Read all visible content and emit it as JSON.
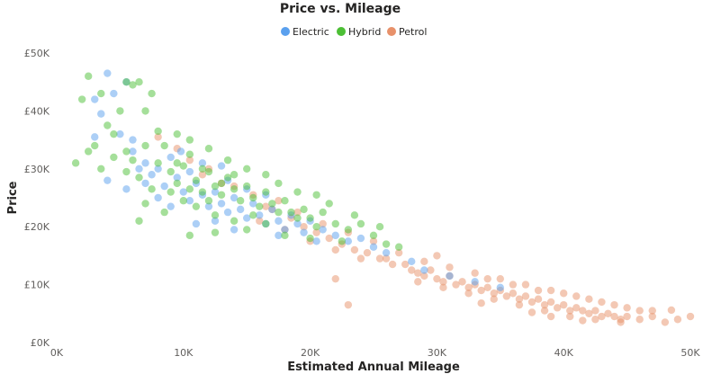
{
  "chart_data": {
    "type": "scatter",
    "title": "Price vs. Mileage",
    "xlabel": "Estimated Annual Mileage",
    "ylabel": "Price",
    "xlim": [
      0,
      50000
    ],
    "ylim": [
      0,
      50000
    ],
    "x_ticks": [
      {
        "value": 0,
        "label": "0K"
      },
      {
        "value": 10000,
        "label": "10K"
      },
      {
        "value": 20000,
        "label": "20K"
      },
      {
        "value": 30000,
        "label": "30K"
      },
      {
        "value": 40000,
        "label": "40K"
      },
      {
        "value": 50000,
        "label": "50K"
      }
    ],
    "y_ticks": [
      {
        "value": 0,
        "label": "£0K"
      },
      {
        "value": 10000,
        "label": "£10K"
      },
      {
        "value": 20000,
        "label": "£20K"
      },
      {
        "value": 30000,
        "label": "£30K"
      },
      {
        "value": 40000,
        "label": "£40K"
      },
      {
        "value": 50000,
        "label": "£50K"
      }
    ],
    "grid": false,
    "legend_position": "top-center",
    "series": [
      {
        "name": "Electric",
        "color": "#5aa0ee",
        "points": [
          [
            4000,
            46500
          ],
          [
            5500,
            45000
          ],
          [
            3000,
            35500
          ],
          [
            3500,
            39500
          ],
          [
            4500,
            43000
          ],
          [
            5000,
            36000
          ],
          [
            6000,
            33000
          ],
          [
            7000,
            31000
          ],
          [
            8000,
            30000
          ],
          [
            9000,
            32000
          ],
          [
            7500,
            29000
          ],
          [
            8500,
            27000
          ],
          [
            9500,
            28500
          ],
          [
            10000,
            26000
          ],
          [
            10500,
            24500
          ],
          [
            11000,
            27500
          ],
          [
            11500,
            25500
          ],
          [
            12000,
            23500
          ],
          [
            12500,
            26000
          ],
          [
            13000,
            24000
          ],
          [
            13500,
            22500
          ],
          [
            14000,
            25000
          ],
          [
            14500,
            23000
          ],
          [
            15000,
            21500
          ],
          [
            15500,
            24000
          ],
          [
            16000,
            22000
          ],
          [
            16500,
            20500
          ],
          [
            17000,
            23000
          ],
          [
            17500,
            21000
          ],
          [
            18000,
            19500
          ],
          [
            18500,
            22000
          ],
          [
            19000,
            20500
          ],
          [
            19500,
            19000
          ],
          [
            20000,
            21000
          ],
          [
            21000,
            19500
          ],
          [
            22000,
            18500
          ],
          [
            23000,
            17500
          ],
          [
            24000,
            18000
          ],
          [
            25000,
            16500
          ],
          [
            26000,
            15500
          ],
          [
            28000,
            14000
          ],
          [
            29000,
            12500
          ],
          [
            31000,
            11500
          ],
          [
            33000,
            10500
          ],
          [
            35000,
            9500
          ],
          [
            10500,
            29500
          ],
          [
            9800,
            33000
          ],
          [
            11500,
            31000
          ],
          [
            13500,
            28000
          ],
          [
            15000,
            26500
          ],
          [
            12500,
            21000
          ],
          [
            16500,
            25500
          ],
          [
            8000,
            25000
          ],
          [
            7000,
            27500
          ],
          [
            6500,
            30000
          ],
          [
            5500,
            26500
          ],
          [
            4000,
            28000
          ],
          [
            6000,
            35000
          ],
          [
            3000,
            42000
          ],
          [
            9000,
            23500
          ],
          [
            11000,
            20500
          ],
          [
            14000,
            19500
          ],
          [
            17500,
            18500
          ],
          [
            20500,
            17500
          ],
          [
            13000,
            30500
          ]
        ]
      },
      {
        "name": "Hybrid",
        "color": "#4cbf35",
        "points": [
          [
            2500,
            46000
          ],
          [
            3500,
            43000
          ],
          [
            2000,
            42000
          ],
          [
            5500,
            45000
          ],
          [
            6000,
            44500
          ],
          [
            6500,
            45000
          ],
          [
            7500,
            43000
          ],
          [
            7000,
            40000
          ],
          [
            5000,
            40000
          ],
          [
            4000,
            37500
          ],
          [
            3000,
            34000
          ],
          [
            2500,
            33000
          ],
          [
            1500,
            31000
          ],
          [
            4500,
            32000
          ],
          [
            5500,
            29500
          ],
          [
            6500,
            28500
          ],
          [
            7500,
            26500
          ],
          [
            8000,
            31000
          ],
          [
            8500,
            34000
          ],
          [
            9000,
            29500
          ],
          [
            9500,
            27500
          ],
          [
            10000,
            30500
          ],
          [
            10500,
            32500
          ],
          [
            11000,
            28000
          ],
          [
            11500,
            26000
          ],
          [
            12000,
            29500
          ],
          [
            12500,
            27000
          ],
          [
            13000,
            25500
          ],
          [
            13500,
            28500
          ],
          [
            14000,
            26500
          ],
          [
            14500,
            24500
          ],
          [
            15000,
            27000
          ],
          [
            15500,
            25000
          ],
          [
            16000,
            23500
          ],
          [
            16500,
            26000
          ],
          [
            17000,
            24000
          ],
          [
            17500,
            22500
          ],
          [
            18000,
            24500
          ],
          [
            18500,
            22500
          ],
          [
            19000,
            21500
          ],
          [
            19500,
            23000
          ],
          [
            20000,
            21500
          ],
          [
            20500,
            20000
          ],
          [
            21000,
            22500
          ],
          [
            22000,
            20500
          ],
          [
            23000,
            19500
          ],
          [
            24000,
            20500
          ],
          [
            25000,
            18500
          ],
          [
            26000,
            17000
          ],
          [
            27000,
            16500
          ],
          [
            8000,
            36500
          ],
          [
            9500,
            36000
          ],
          [
            10500,
            35000
          ],
          [
            12000,
            33500
          ],
          [
            13500,
            31500
          ],
          [
            11000,
            23500
          ],
          [
            12500,
            22000
          ],
          [
            14000,
            21000
          ],
          [
            15500,
            22000
          ],
          [
            16500,
            20500
          ],
          [
            10000,
            24500
          ],
          [
            9000,
            26000
          ],
          [
            7000,
            24000
          ],
          [
            8500,
            22500
          ],
          [
            6500,
            21000
          ],
          [
            10500,
            18500
          ],
          [
            12500,
            19000
          ],
          [
            15000,
            19500
          ],
          [
            18000,
            18500
          ],
          [
            20000,
            18000
          ],
          [
            22500,
            17500
          ],
          [
            4500,
            36000
          ],
          [
            7000,
            34000
          ],
          [
            3500,
            30000
          ],
          [
            5500,
            33000
          ],
          [
            6000,
            31500
          ],
          [
            9500,
            31000
          ],
          [
            11500,
            30000
          ],
          [
            13000,
            27500
          ],
          [
            15000,
            30000
          ],
          [
            16500,
            29000
          ],
          [
            17500,
            27500
          ],
          [
            19000,
            26000
          ],
          [
            20500,
            25500
          ],
          [
            21500,
            24000
          ],
          [
            23500,
            22000
          ],
          [
            25500,
            20000
          ],
          [
            14000,
            29000
          ],
          [
            12000,
            24500
          ],
          [
            10500,
            26500
          ]
        ]
      },
      {
        "name": "Petrol",
        "color": "#e8916a",
        "points": [
          [
            8000,
            35500
          ],
          [
            9500,
            33500
          ],
          [
            10500,
            31500
          ],
          [
            12000,
            30000
          ],
          [
            14000,
            27000
          ],
          [
            15500,
            25500
          ],
          [
            17000,
            23000
          ],
          [
            18500,
            21500
          ],
          [
            19500,
            20000
          ],
          [
            20500,
            19000
          ],
          [
            21500,
            18000
          ],
          [
            22500,
            17000
          ],
          [
            23500,
            16000
          ],
          [
            24500,
            15500
          ],
          [
            25500,
            14500
          ],
          [
            26500,
            13500
          ],
          [
            27500,
            13500
          ],
          [
            28000,
            12500
          ],
          [
            28500,
            12000
          ],
          [
            29000,
            11500
          ],
          [
            29500,
            12500
          ],
          [
            30000,
            11000
          ],
          [
            30500,
            10500
          ],
          [
            31000,
            11500
          ],
          [
            31500,
            10000
          ],
          [
            32000,
            10500
          ],
          [
            32500,
            9500
          ],
          [
            33000,
            10000
          ],
          [
            33500,
            9000
          ],
          [
            34000,
            9500
          ],
          [
            34500,
            8500
          ],
          [
            35000,
            9000
          ],
          [
            35500,
            8000
          ],
          [
            36000,
            8500
          ],
          [
            36500,
            7500
          ],
          [
            37000,
            8000
          ],
          [
            37500,
            7000
          ],
          [
            38000,
            7500
          ],
          [
            38500,
            6500
          ],
          [
            39000,
            7000
          ],
          [
            39500,
            6000
          ],
          [
            40000,
            6500
          ],
          [
            40500,
            5500
          ],
          [
            41000,
            6000
          ],
          [
            41500,
            5500
          ],
          [
            42000,
            5000
          ],
          [
            42500,
            5500
          ],
          [
            43000,
            4500
          ],
          [
            43500,
            5000
          ],
          [
            44000,
            4500
          ],
          [
            44500,
            4000
          ],
          [
            45000,
            4500
          ],
          [
            46000,
            4000
          ],
          [
            47000,
            4500
          ],
          [
            48000,
            3500
          ],
          [
            49000,
            4000
          ],
          [
            50000,
            4500
          ],
          [
            33000,
            12000
          ],
          [
            35000,
            11000
          ],
          [
            37000,
            10000
          ],
          [
            39000,
            9000
          ],
          [
            41000,
            8000
          ],
          [
            43000,
            7000
          ],
          [
            45000,
            6000
          ],
          [
            31000,
            13000
          ],
          [
            29000,
            14000
          ],
          [
            27000,
            15500
          ],
          [
            25000,
            17500
          ],
          [
            23000,
            19000
          ],
          [
            21000,
            20500
          ],
          [
            19000,
            22500
          ],
          [
            17500,
            24500
          ],
          [
            16000,
            21000
          ],
          [
            18000,
            19500
          ],
          [
            20000,
            17500
          ],
          [
            22000,
            16000
          ],
          [
            24000,
            14500
          ],
          [
            26000,
            14500
          ],
          [
            28500,
            10500
          ],
          [
            30500,
            9500
          ],
          [
            32500,
            8500
          ],
          [
            34500,
            7500
          ],
          [
            36500,
            6500
          ],
          [
            38500,
            5500
          ],
          [
            40500,
            4500
          ],
          [
            42500,
            4000
          ],
          [
            44500,
            3500
          ],
          [
            22000,
            11000
          ],
          [
            23000,
            6500
          ],
          [
            30000,
            15000
          ],
          [
            34000,
            11000
          ],
          [
            38000,
            9000
          ],
          [
            42000,
            7500
          ],
          [
            46000,
            5500
          ],
          [
            36000,
            10000
          ],
          [
            40000,
            8500
          ],
          [
            44000,
            6500
          ],
          [
            47000,
            5500
          ],
          [
            39000,
            4500
          ],
          [
            41500,
            3800
          ],
          [
            37500,
            5200
          ],
          [
            33500,
            6800
          ],
          [
            48500,
            5600
          ],
          [
            13000,
            27500
          ],
          [
            11500,
            29000
          ],
          [
            16500,
            23500
          ]
        ]
      }
    ]
  }
}
